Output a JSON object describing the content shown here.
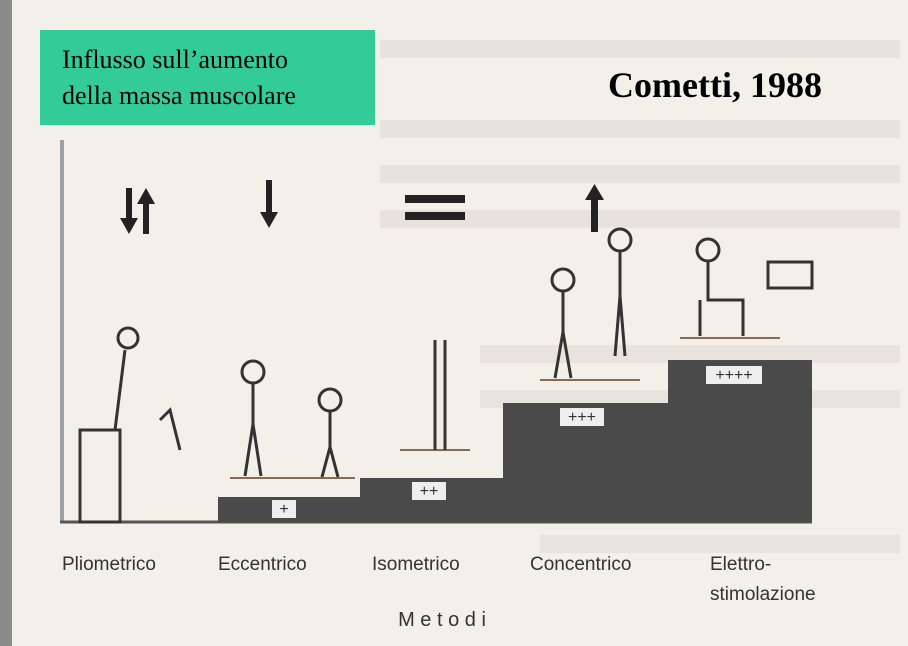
{
  "header": {
    "title_lines": [
      "Influsso sull’aumento",
      "della massa muscolare"
    ],
    "author": "Cometti, 1988"
  },
  "steps": [
    {
      "label": "+"
    },
    {
      "label": "++"
    },
    {
      "label": "+++"
    },
    {
      "label": "++++"
    }
  ],
  "methods": [
    "Pliometrico",
    "Eccentrico",
    "Isometrico",
    "Concentrico",
    [
      "Elettro-",
      "stimolazione"
    ]
  ],
  "axis_label": "M e t o d i"
}
